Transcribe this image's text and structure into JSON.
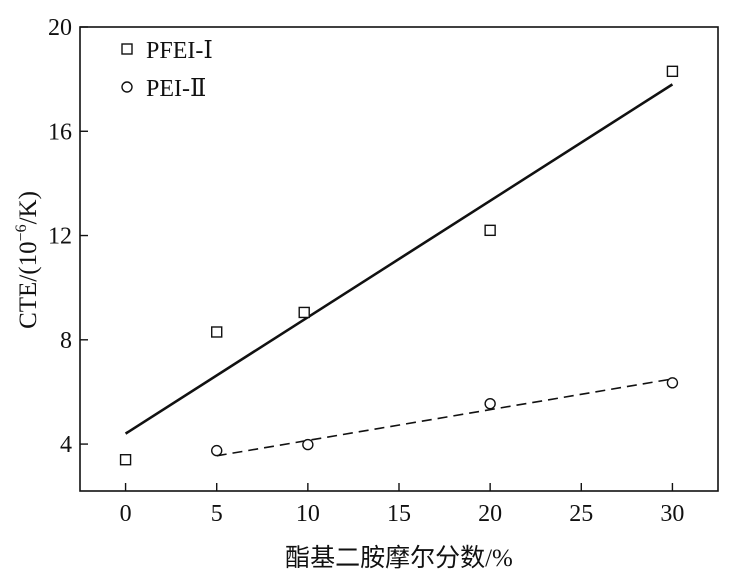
{
  "chart_data": {
    "type": "scatter",
    "title": "",
    "xlabel": "酯基二胺摩尔分数/%",
    "ylabel_parts": {
      "prefix": "CTE/(10",
      "exponent": "−6",
      "suffix": "/K)"
    },
    "xlim": [
      -2.5,
      32.5
    ],
    "ylim": [
      2.2,
      20
    ],
    "x_ticks": [
      0,
      5,
      10,
      15,
      20,
      25,
      30
    ],
    "x_tick_labels": [
      "0",
      "5",
      "10",
      "15",
      "20",
      "25",
      "30"
    ],
    "y_ticks": [
      4,
      8,
      12,
      16,
      20
    ],
    "y_tick_labels": [
      "4",
      "8",
      "12",
      "16",
      "20"
    ],
    "grid": false,
    "legend_position": "top-left",
    "series": [
      {
        "name": "PFEI-Ⅰ",
        "marker": "square",
        "x": [
          0,
          5,
          9.8,
          20,
          30
        ],
        "y": [
          3.4,
          8.3,
          9.05,
          12.2,
          18.3
        ],
        "fit": {
          "style": "solid",
          "x": [
            0,
            30
          ],
          "y": [
            4.4,
            17.8
          ]
        }
      },
      {
        "name": "PEI-Ⅱ",
        "marker": "circle",
        "x": [
          5,
          10,
          20,
          30
        ],
        "y": [
          3.75,
          3.98,
          5.55,
          6.35
        ],
        "fit": {
          "style": "dashed",
          "x": [
            5,
            30
          ],
          "y": [
            3.55,
            6.5
          ]
        }
      }
    ]
  }
}
